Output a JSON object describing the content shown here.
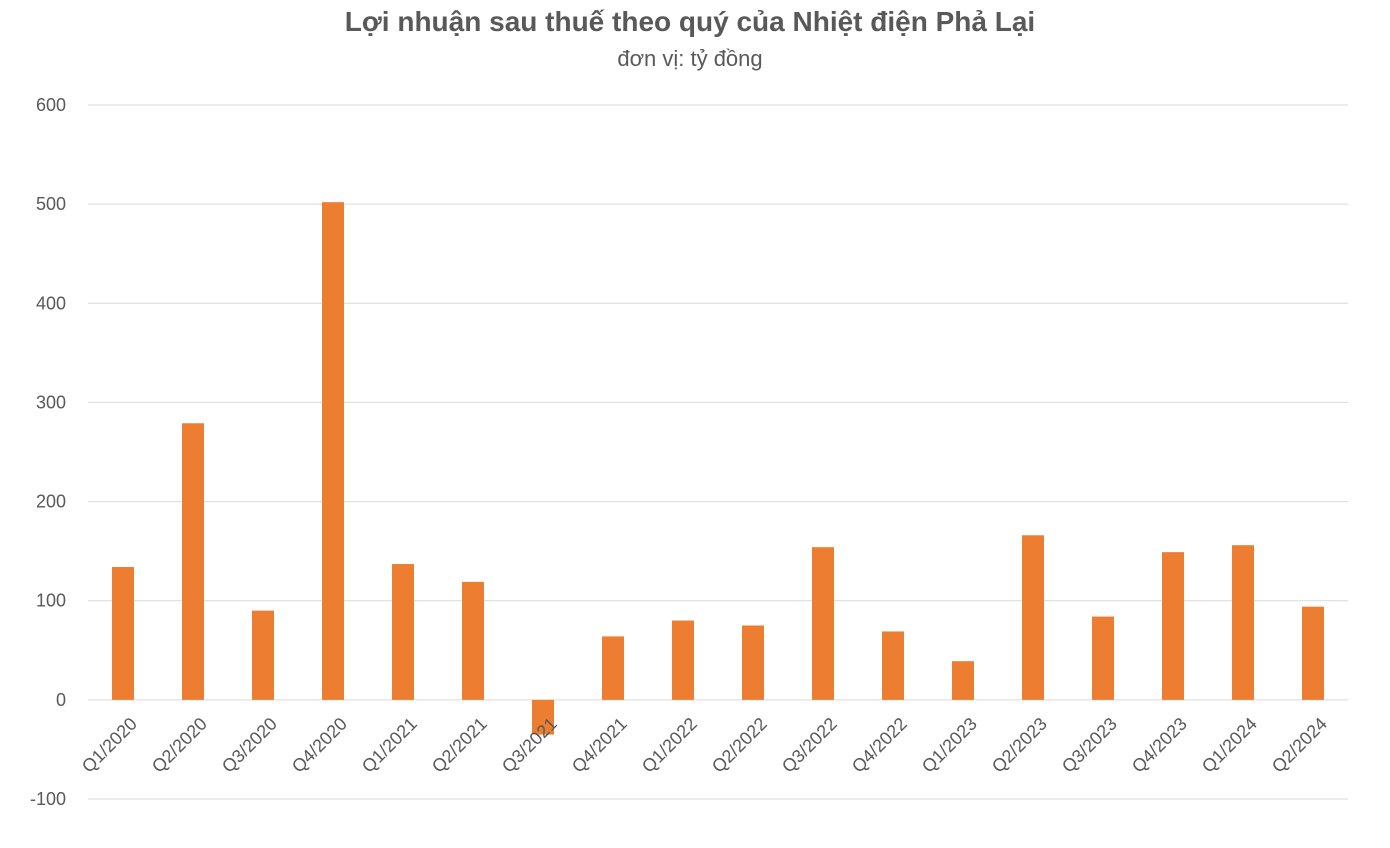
{
  "chart_data": {
    "type": "bar",
    "title": "Lợi nhuận sau thuế theo quý của Nhiệt điện Phả Lại",
    "subtitle": "đơn vị: tỷ đồng",
    "xlabel": "",
    "ylabel": "",
    "ylim": [
      -100,
      600
    ],
    "yticks": [
      600,
      500,
      400,
      300,
      200,
      100,
      0,
      -100
    ],
    "grid": true,
    "legend": "none",
    "categories": [
      "Q1/2020",
      "Q2/2020",
      "Q3/2020",
      "Q4/2020",
      "Q1/2021",
      "Q2/2021",
      "Q3/2021",
      "Q4/2021",
      "Q1/2022",
      "Q2/2022",
      "Q3/2022",
      "Q4/2022",
      "Q1/2023",
      "Q2/2023",
      "Q3/2023",
      "Q4/2023",
      "Q1/2024",
      "Q2/2024"
    ],
    "values": [
      134,
      279,
      90,
      502,
      137,
      119,
      -35,
      64,
      80,
      75,
      154,
      69,
      39,
      166,
      84,
      149,
      156,
      94
    ],
    "bar_color": "#ED7D31",
    "grid_color": "#D9D9D9"
  }
}
